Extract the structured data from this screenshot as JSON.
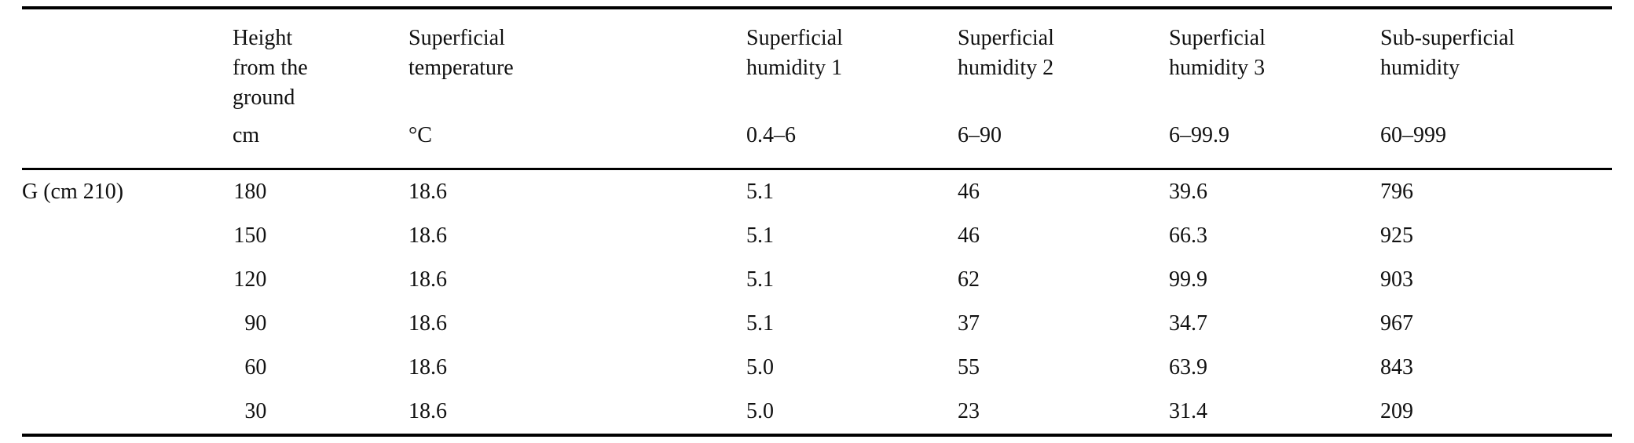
{
  "table": {
    "columns": [
      {
        "name": "",
        "unit": ""
      },
      {
        "name": "Height\nfrom the\nground",
        "unit": "cm"
      },
      {
        "name": "Superficial\ntemperature",
        "unit": "°C"
      },
      {
        "name": "Superficial\nhumidity 1",
        "unit": "0.4–6"
      },
      {
        "name": "Superficial\nhumidity 2",
        "unit": "6–90"
      },
      {
        "name": "Superficial\nhumidity 3",
        "unit": "6–99.9"
      },
      {
        "name": "Sub-superficial\nhumidity",
        "unit": "60–999"
      }
    ],
    "rows": [
      {
        "label": "G (cm 210)",
        "height": "180",
        "temp": "18.6",
        "hum1": "5.1",
        "hum2": "46",
        "hum3": "39.6",
        "sub": "796"
      },
      {
        "label": "",
        "height": "150",
        "temp": "18.6",
        "hum1": "5.1",
        "hum2": "46",
        "hum3": "66.3",
        "sub": "925"
      },
      {
        "label": "",
        "height": "120",
        "temp": "18.6",
        "hum1": "5.1",
        "hum2": "62",
        "hum3": "99.9",
        "sub": "903"
      },
      {
        "label": "",
        "height": "90",
        "temp": "18.6",
        "hum1": "5.1",
        "hum2": "37",
        "hum3": "34.7",
        "sub": "967"
      },
      {
        "label": "",
        "height": "60",
        "temp": "18.6",
        "hum1": "5.0",
        "hum2": "55",
        "hum3": "63.9",
        "sub": "843"
      },
      {
        "label": "",
        "height": "30",
        "temp": "18.6",
        "hum1": "5.0",
        "hum2": "23",
        "hum3": "31.4",
        "sub": "209"
      }
    ]
  }
}
